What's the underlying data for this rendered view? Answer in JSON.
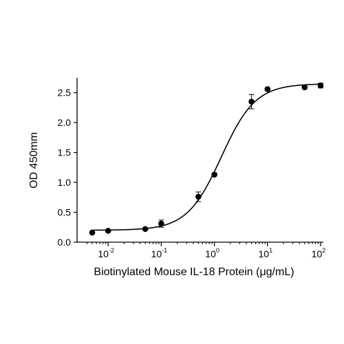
{
  "chart_data": {
    "type": "scatter",
    "title": "",
    "xlabel": "Biotinylated Mouse IL-18 Protein (μg/mL)",
    "ylabel": "OD 450mm",
    "x_scale": "log",
    "xlim": [
      0.0035,
      100
    ],
    "ylim": [
      0,
      2.75
    ],
    "x_ticks": [
      {
        "base": "10",
        "exp": "-2",
        "value": 0.01
      },
      {
        "base": "10",
        "exp": "-1",
        "value": 0.1
      },
      {
        "base": "10",
        "exp": "0",
        "value": 1
      },
      {
        "base": "10",
        "exp": "1",
        "value": 10
      },
      {
        "base": "10",
        "exp": "2",
        "value": 100
      }
    ],
    "y_ticks": [
      "0.0",
      "0.5",
      "1.0",
      "1.5",
      "2.0",
      "2.5"
    ],
    "points": [
      {
        "x": 0.005,
        "y": 0.16,
        "err": 0.01
      },
      {
        "x": 0.01,
        "y": 0.19,
        "err": 0.01
      },
      {
        "x": 0.05,
        "y": 0.22,
        "err": 0.01
      },
      {
        "x": 0.1,
        "y": 0.31,
        "err": 0.06
      },
      {
        "x": 0.5,
        "y": 0.76,
        "err": 0.08
      },
      {
        "x": 1,
        "y": 1.13,
        "err": 0.02
      },
      {
        "x": 5,
        "y": 2.35,
        "err": 0.12
      },
      {
        "x": 10,
        "y": 2.56,
        "err": 0.02
      },
      {
        "x": 50,
        "y": 2.59,
        "err": 0.02
      },
      {
        "x": 100,
        "y": 2.62,
        "err": 0.04
      }
    ],
    "fit_curve": {
      "type": "4PL",
      "bottom": 0.2,
      "top": 2.65,
      "ec50": 1.35,
      "hill": 1.35
    },
    "grid": false,
    "legend": "none"
  }
}
